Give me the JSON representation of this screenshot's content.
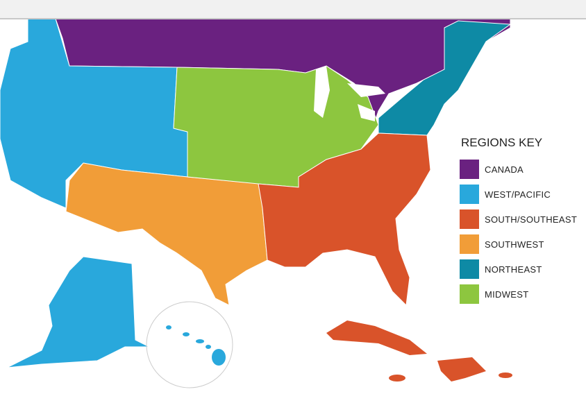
{
  "legend": {
    "title": "REGIONS KEY",
    "items": [
      {
        "label": "CANADA",
        "color": "#6a2180"
      },
      {
        "label": "WEST/PACIFIC",
        "color": "#29a8dc"
      },
      {
        "label": "SOUTH/SOUTHEAST",
        "color": "#d9532a"
      },
      {
        "label": "SOUTHWEST",
        "color": "#f19d38"
      },
      {
        "label": "NORTHEAST",
        "color": "#0e8aa5"
      },
      {
        "label": "MIDWEST",
        "color": "#8dc63f"
      }
    ]
  }
}
